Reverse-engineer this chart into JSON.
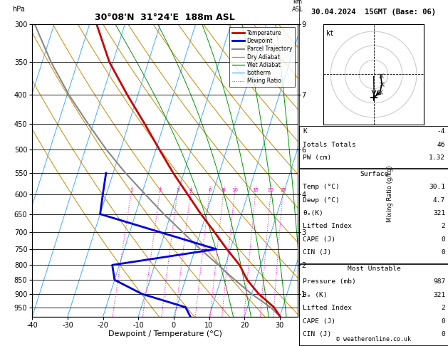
{
  "title_left": "30°08'N  31°24'E  188m ASL",
  "title_right": "30.04.2024  15GMT (Base: 06)",
  "xlabel": "Dewpoint / Temperature (°C)",
  "pressure_levels": [
    300,
    350,
    400,
    450,
    500,
    550,
    600,
    650,
    700,
    750,
    800,
    850,
    900,
    950
  ],
  "km_ticks": {
    "300": "9",
    "400": "7",
    "500": "6",
    "600": "4",
    "700": "3",
    "800": "2",
    "900": "1"
  },
  "temp_profile": {
    "pressure": [
      987,
      950,
      900,
      850,
      800,
      750,
      700,
      650,
      600,
      550,
      500,
      450,
      400,
      350,
      300
    ],
    "temp": [
      30.1,
      27.5,
      22.0,
      17.5,
      14.0,
      9.0,
      4.0,
      -1.5,
      -7.0,
      -13.0,
      -19.0,
      -25.5,
      -33.0,
      -41.0,
      -48.0
    ]
  },
  "dewp_profile": {
    "pressure": [
      987,
      950,
      900,
      850,
      800,
      750,
      650,
      600,
      550
    ],
    "temp": [
      4.7,
      2.5,
      -11.0,
      -20.0,
      -22.0,
      6.0,
      -30.0,
      -31.0,
      -32.0
    ]
  },
  "parcel_profile": {
    "pressure": [
      987,
      950,
      900,
      850,
      800,
      750,
      700,
      650,
      600,
      550,
      500,
      450,
      400,
      350,
      300
    ],
    "temp": [
      30.1,
      26.5,
      20.0,
      14.0,
      8.0,
      1.5,
      -5.0,
      -12.0,
      -19.0,
      -26.5,
      -34.0,
      -41.5,
      -49.5,
      -57.5,
      -65.5
    ]
  },
  "skew_factor": 22.0,
  "xmin": -40,
  "xmax": 35,
  "pmin": 300,
  "pmax": 987,
  "background_color": "#ffffff",
  "temp_color": "#cc0000",
  "dewp_color": "#0000dd",
  "parcel_color": "#888888",
  "isotherm_color": "#44aaff",
  "dry_adiabat_color": "#cc8800",
  "wet_adiabat_color": "#009900",
  "mixing_ratio_color": "#ff00bb",
  "mixing_ratios": [
    1,
    2,
    3,
    4,
    6,
    8,
    10,
    15,
    20,
    25
  ],
  "dry_adiabats_theta": [
    270,
    280,
    290,
    300,
    310,
    320,
    330,
    340,
    350,
    360,
    370,
    380,
    390,
    400
  ],
  "wet_adiabat_starts": [
    270,
    275,
    280,
    285,
    290,
    295,
    300,
    305,
    310,
    315,
    320,
    325,
    330,
    335,
    340,
    345,
    350
  ],
  "copyright": "© weatheronline.co.uk"
}
